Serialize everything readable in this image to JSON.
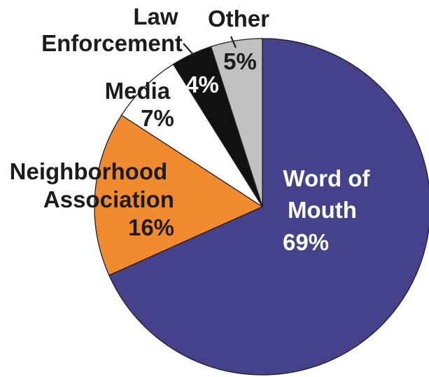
{
  "chart_data": {
    "type": "pie",
    "title": "",
    "slices": [
      {
        "label_lines": [
          "Word of",
          "Mouth"
        ],
        "pct_label": "69%",
        "value": 69,
        "color": "#45418b"
      },
      {
        "label_lines": [
          "Neighborhood",
          "Association"
        ],
        "pct_label": "16%",
        "value": 16,
        "color": "#f28b30"
      },
      {
        "label_lines": [
          "Media"
        ],
        "pct_label": "7%",
        "value": 7,
        "color": "#ffffff"
      },
      {
        "label_lines": [
          "Law",
          "Enforcement"
        ],
        "pct_label": "4%",
        "value": 4,
        "color": "#111111"
      },
      {
        "label_lines": [
          "Other"
        ],
        "pct_label": "5%",
        "value": 5,
        "color": "#c0c0c0"
      }
    ],
    "start": "12 o'clock",
    "direction": "clockwise",
    "legend": "none"
  }
}
